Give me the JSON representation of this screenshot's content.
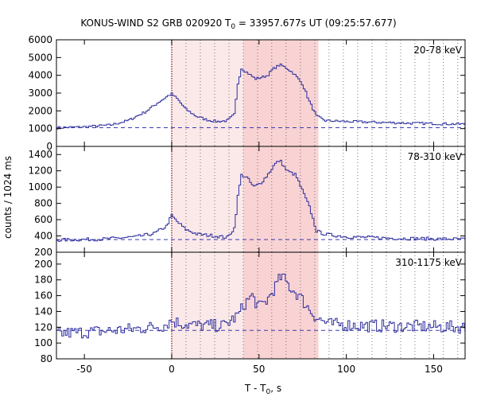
{
  "chart_data": {
    "type": "line",
    "title": "KONUS-WIND S2 GRB 020920 T",
    "title_sub": "0",
    "title_rest": " = 33957.677s UT (09:25:57.677)",
    "xlabel": "T - T",
    "xlabel_sub": "0",
    "xlabel_rest": ", s",
    "ylabel": "counts / 1024 ms",
    "xlim": [
      -66,
      168
    ],
    "x_ticks": [
      -50,
      0,
      50,
      100,
      150
    ],
    "x_tick_labels": [
      "-50",
      "0",
      "50",
      "100",
      "150"
    ],
    "grid": false,
    "trigger_time": 0,
    "shaded_interval": [
      41,
      84
    ],
    "vertical_dotted_lines": [
      8.2,
      16.4,
      24.6,
      32.8,
      41.0,
      49.2,
      57.3,
      65.5,
      73.7,
      81.9,
      90.1,
      98.3,
      106.5,
      114.7,
      122.9,
      131.1,
      139.3,
      147.5,
      155.6,
      163.8
    ],
    "colors": {
      "data_line": "#2d2d9f",
      "background_line": "#3a3ab0",
      "shade_light": "#fbe9e9",
      "shade_dark": "#f9d3d3",
      "trigger_line": "#8b0000"
    },
    "panels": [
      {
        "label": "20-78 keV",
        "ylim": [
          0,
          6000
        ],
        "y_ticks": [
          0,
          1000,
          2000,
          3000,
          4000,
          5000,
          6000
        ],
        "y_tick_labels": [
          "0",
          "1000",
          "2000",
          "3000",
          "4000",
          "5000",
          "6000"
        ],
        "background": 1050,
        "keypoints": [
          [
            -66,
            1050
          ],
          [
            -50,
            1100
          ],
          [
            -35,
            1200
          ],
          [
            -25,
            1450
          ],
          [
            -15,
            1950
          ],
          [
            -8,
            2450
          ],
          [
            -2,
            2850
          ],
          [
            0,
            2950
          ],
          [
            3,
            2700
          ],
          [
            8,
            2100
          ],
          [
            14,
            1700
          ],
          [
            20,
            1500
          ],
          [
            26,
            1400
          ],
          [
            32,
            1450
          ],
          [
            36,
            1800
          ],
          [
            38,
            3600
          ],
          [
            40,
            4400
          ],
          [
            44,
            4100
          ],
          [
            48,
            3800
          ],
          [
            52,
            3900
          ],
          [
            55,
            4000
          ],
          [
            58,
            4350
          ],
          [
            62,
            4600
          ],
          [
            66,
            4400
          ],
          [
            70,
            4100
          ],
          [
            75,
            3500
          ],
          [
            79,
            2500
          ],
          [
            83,
            1700
          ],
          [
            88,
            1450
          ],
          [
            100,
            1400
          ],
          [
            120,
            1350
          ],
          [
            140,
            1300
          ],
          [
            168,
            1250
          ]
        ],
        "noise": 70
      },
      {
        "label": "78-310 keV",
        "ylim": [
          200,
          1500
        ],
        "y_ticks": [
          200,
          400,
          600,
          800,
          1000,
          1200,
          1400
        ],
        "y_tick_labels": [
          "200",
          "400",
          "600",
          "800",
          "1000",
          "1200",
          "1400"
        ],
        "background": 355,
        "keypoints": [
          [
            -66,
            350
          ],
          [
            -40,
            360
          ],
          [
            -20,
            390
          ],
          [
            -10,
            430
          ],
          [
            -3,
            520
          ],
          [
            0,
            650
          ],
          [
            3,
            580
          ],
          [
            8,
            480
          ],
          [
            15,
            420
          ],
          [
            25,
            400
          ],
          [
            32,
            380
          ],
          [
            36,
            500
          ],
          [
            38,
            900
          ],
          [
            40,
            1150
          ],
          [
            43,
            1120
          ],
          [
            47,
            1000
          ],
          [
            51,
            1050
          ],
          [
            55,
            1150
          ],
          [
            59,
            1280
          ],
          [
            62,
            1330
          ],
          [
            66,
            1200
          ],
          [
            71,
            1150
          ],
          [
            75,
            950
          ],
          [
            79,
            750
          ],
          [
            83,
            460
          ],
          [
            88,
            420
          ],
          [
            100,
            390
          ],
          [
            130,
            370
          ],
          [
            168,
            360
          ]
        ],
        "noise": 20
      },
      {
        "label": "310-1175 keV",
        "ylim": [
          80,
          215
        ],
        "y_ticks": [
          80,
          100,
          120,
          140,
          160,
          180,
          200
        ],
        "y_tick_labels": [
          "80",
          "100",
          "120",
          "140",
          "160",
          "180",
          "200"
        ],
        "background": 116,
        "keypoints": [
          [
            -66,
            112
          ],
          [
            -40,
            115
          ],
          [
            -20,
            118
          ],
          [
            -5,
            122
          ],
          [
            0,
            128
          ],
          [
            5,
            125
          ],
          [
            15,
            122
          ],
          [
            30,
            122
          ],
          [
            38,
            135
          ],
          [
            42,
            150
          ],
          [
            46,
            160
          ],
          [
            50,
            145
          ],
          [
            55,
            155
          ],
          [
            59,
            170
          ],
          [
            63,
            185
          ],
          [
            68,
            170
          ],
          [
            73,
            160
          ],
          [
            78,
            145
          ],
          [
            83,
            132
          ],
          [
            90,
            124
          ],
          [
            110,
            122
          ],
          [
            140,
            121
          ],
          [
            168,
            120
          ]
        ],
        "noise": 8
      }
    ]
  }
}
